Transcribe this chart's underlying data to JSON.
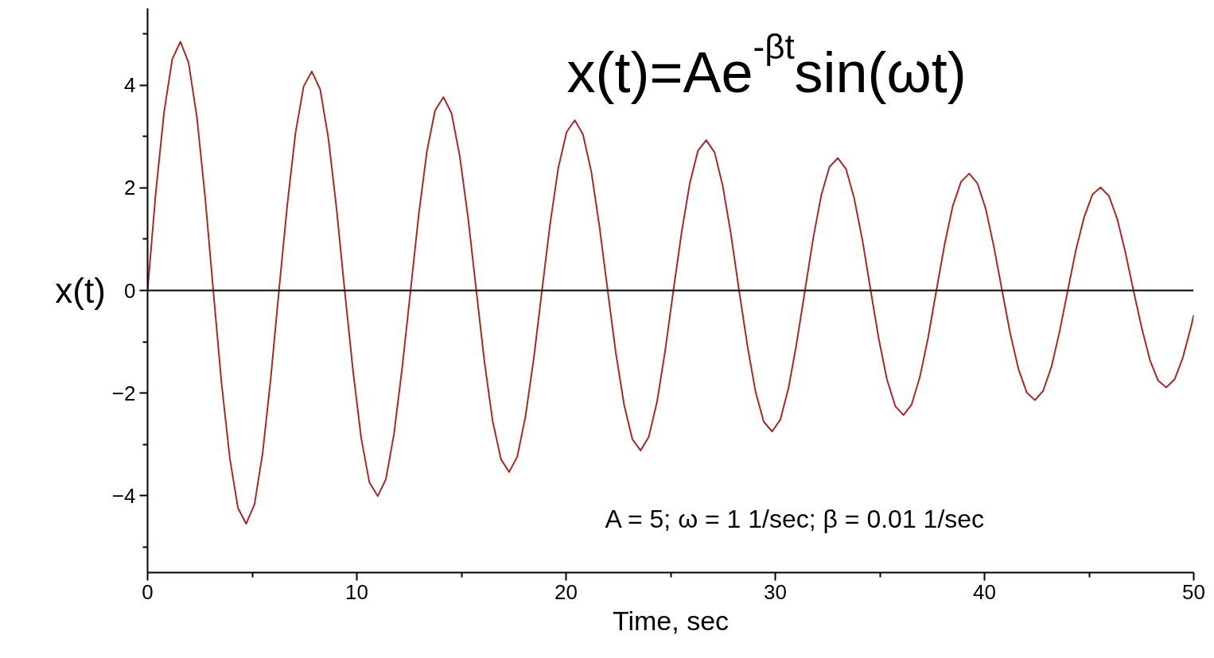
{
  "chart_data": {
    "type": "line",
    "xlabel": "Time, sec",
    "ylabel": "x(t)",
    "annotations": [
      "x(t)=Ae$^{-βt}$sin(ωt)",
      "A = 5; ω = 1 1/sec; β = 0.01 1/sec"
    ],
    "x": [
      0,
      0.39,
      0.79,
      1.18,
      1.57,
      1.96,
      2.36,
      2.75,
      3.14,
      3.53,
      3.93,
      4.32,
      4.71,
      5.11,
      5.5,
      5.89,
      6.28,
      6.68,
      7.07,
      7.46,
      7.85,
      8.25,
      8.64,
      9.03,
      9.42,
      9.82,
      10.21,
      10.6,
      11.0,
      11.39,
      11.78,
      12.17,
      12.57,
      12.96,
      13.35,
      13.74,
      14.14,
      14.53,
      14.92,
      15.32,
      15.71,
      16.1,
      16.49,
      16.89,
      17.28,
      17.67,
      18.06,
      18.46,
      18.85,
      19.24,
      19.63,
      20.03,
      20.42,
      20.81,
      21.21,
      21.6,
      21.99,
      22.38,
      22.78,
      23.17,
      23.56,
      23.95,
      24.35,
      24.74,
      25.13,
      25.53,
      25.92,
      26.31,
      26.7,
      27.1,
      27.49,
      27.88,
      28.27,
      28.67,
      29.06,
      29.45,
      29.85,
      30.24,
      30.63,
      31.02,
      31.42,
      31.81,
      32.2,
      32.59,
      32.99,
      33.38,
      33.77,
      34.17,
      34.56,
      34.95,
      35.34,
      35.74,
      36.13,
      36.52,
      36.91,
      37.31,
      37.7,
      38.09,
      38.48,
      38.88,
      39.27,
      39.66,
      40.06,
      40.45,
      40.84,
      41.23,
      41.63,
      42.02,
      42.41,
      42.8,
      43.2,
      43.59,
      43.98,
      44.37,
      44.77,
      45.16,
      45.55,
      45.95,
      46.34,
      46.73,
      47.12,
      47.52,
      47.91,
      48.3,
      48.69,
      49.09,
      49.48,
      49.87,
      50
    ],
    "series": [
      {
        "color": "#a52a2a",
        "values": [
          0,
          1.9,
          3.48,
          4.51,
          4.85,
          4.44,
          3.37,
          1.82,
          0,
          -1.79,
          -3.27,
          -4.24,
          -4.55,
          -4.17,
          -3.17,
          -1.7,
          0,
          1.68,
          3.07,
          3.98,
          4.27,
          3.92,
          2.97,
          1.6,
          0,
          -1.57,
          -2.88,
          -3.74,
          -4.01,
          -3.68,
          -2.79,
          -1.5,
          0,
          1.48,
          2.71,
          3.51,
          3.77,
          3.45,
          2.62,
          1.41,
          0,
          -1.39,
          -2.54,
          -3.29,
          -3.54,
          -3.24,
          -2.46,
          -1.32,
          0,
          1.3,
          2.39,
          3.09,
          3.32,
          3.04,
          2.31,
          1.24,
          0,
          -1.22,
          -2.24,
          -2.9,
          -3.12,
          -2.86,
          -2.17,
          -1.17,
          0,
          1.15,
          2.1,
          2.73,
          2.93,
          2.69,
          2.04,
          1.1,
          0,
          -1.08,
          -1.98,
          -2.56,
          -2.75,
          -2.52,
          -1.91,
          -1.03,
          0,
          1.01,
          1.86,
          2.41,
          2.58,
          2.37,
          1.8,
          0.97,
          0,
          -0.95,
          -1.74,
          -2.26,
          -2.43,
          -2.22,
          -1.69,
          -0.91,
          0,
          0.89,
          1.64,
          2.12,
          2.28,
          2.09,
          1.59,
          0.85,
          0,
          -0.84,
          -1.54,
          -1.99,
          -2.14,
          -1.96,
          -1.49,
          -0.8,
          0,
          0.79,
          1.44,
          1.87,
          2.01,
          1.84,
          1.4,
          0.75,
          0,
          -0.74,
          -1.36,
          -1.76,
          -1.89,
          -1.73,
          -1.31,
          -0.71,
          -0.48
        ]
      }
    ],
    "xlim": [
      0,
      50
    ],
    "ylim": [
      -5.5,
      5.5
    ],
    "xticks": [
      0,
      {
        "value": 5,
        "label": null
      },
      10,
      {
        "value": 15,
        "label": null
      },
      20,
      {
        "value": 25,
        "label": null
      },
      30,
      {
        "value": 35,
        "label": null
      },
      40,
      {
        "value": 45,
        "label": null
      },
      50
    ],
    "yticks": [
      {
        "value": -5,
        "label": null
      },
      -4,
      {
        "value": -3,
        "label": null
      },
      -2,
      {
        "value": -1,
        "label": null
      },
      0,
      {
        "value": 1,
        "label": null
      },
      2,
      {
        "value": 3,
        "label": null
      },
      4,
      {
        "value": 5,
        "label": null
      }
    ],
    "ref_lines": [
      {
        "axis": "y",
        "value": 0,
        "color": "#000000"
      }
    ],
    "grid": false,
    "marker": "none",
    "line_style": "solid"
  }
}
